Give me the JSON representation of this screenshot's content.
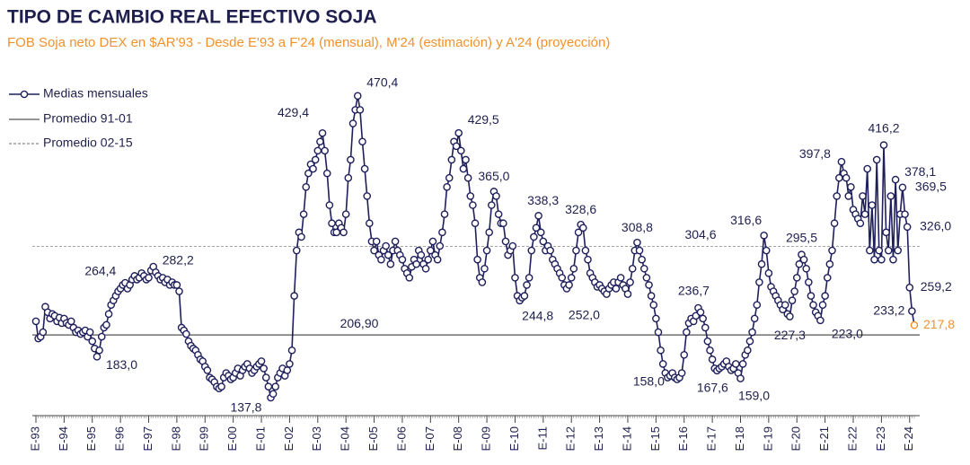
{
  "chart_data": {
    "type": "line",
    "title": "TIPO DE CAMBIO REAL EFECTIVO SOJA",
    "subtitle": "FOB Soja neto DEX en $AR'93 - Desde E'93 a F'24 (mensual), M'24 (estimación) y A'24 (proyección)",
    "ylim": [
      120,
      490
    ],
    "categories": [
      "E-93",
      null,
      null,
      null,
      null,
      null,
      null,
      null,
      null,
      null,
      null,
      null,
      "E-94",
      null,
      null,
      null,
      null,
      null,
      null,
      null,
      null,
      null,
      null,
      null,
      "E-95",
      null,
      null,
      null,
      null,
      null,
      null,
      null,
      null,
      null,
      null,
      null,
      "E-96",
      null,
      null,
      null,
      null,
      null,
      null,
      null,
      null,
      null,
      null,
      null,
      "E-97",
      null,
      null,
      null,
      null,
      null,
      null,
      null,
      null,
      null,
      null,
      null,
      "E-98",
      null,
      null,
      null,
      null,
      null,
      null,
      null,
      null,
      null,
      null,
      null,
      "E-99",
      null,
      null,
      null,
      null,
      null,
      null,
      null,
      null,
      null,
      null,
      null,
      "E-00",
      null,
      null,
      null,
      null,
      null,
      null,
      null,
      null,
      null,
      null,
      null,
      "E-01",
      null,
      null,
      null,
      null,
      null,
      null,
      null,
      null,
      null,
      null,
      null,
      "E-02",
      null,
      null,
      null,
      null,
      null,
      null,
      null,
      null,
      null,
      null,
      null,
      "E-03",
      null,
      null,
      null,
      null,
      null,
      null,
      null,
      null,
      null,
      null,
      null,
      "E-04",
      null,
      null,
      null,
      null,
      null,
      null,
      null,
      null,
      null,
      null,
      null,
      "E-05",
      null,
      null,
      null,
      null,
      null,
      null,
      null,
      null,
      null,
      null,
      null,
      "E-06",
      null,
      null,
      null,
      null,
      null,
      null,
      null,
      null,
      null,
      null,
      null,
      "E-07",
      null,
      null,
      null,
      null,
      null,
      null,
      null,
      null,
      null,
      null,
      null,
      "E-08",
      null,
      null,
      null,
      null,
      null,
      null,
      null,
      null,
      null,
      null,
      null,
      "E-09",
      null,
      null,
      null,
      null,
      null,
      null,
      null,
      null,
      null,
      null,
      null,
      "E-10",
      null,
      null,
      null,
      null,
      null,
      null,
      null,
      null,
      null,
      null,
      null,
      "E-11",
      null,
      null,
      null,
      null,
      null,
      null,
      null,
      null,
      null,
      null,
      null,
      "E-12",
      null,
      null,
      null,
      null,
      null,
      null,
      null,
      null,
      null,
      null,
      null,
      "E-13",
      null,
      null,
      null,
      null,
      null,
      null,
      null,
      null,
      null,
      null,
      null,
      "E-14",
      null,
      null,
      null,
      null,
      null,
      null,
      null,
      null,
      null,
      null,
      null,
      "E-15",
      null,
      null,
      null,
      null,
      null,
      null,
      null,
      null,
      null,
      null,
      null,
      "E-16",
      null,
      null,
      null,
      null,
      null,
      null,
      null,
      null,
      null,
      null,
      null,
      "E-17",
      null,
      null,
      null,
      null,
      null,
      null,
      null,
      null,
      null,
      null,
      null,
      "E-18",
      null,
      null,
      null,
      null,
      null,
      null,
      null,
      null,
      null,
      null,
      null,
      "E-19",
      null,
      null,
      null,
      null,
      null,
      null,
      null,
      null,
      null,
      null,
      null,
      "E-20",
      null,
      null,
      null,
      null,
      null,
      null,
      null,
      null,
      null,
      null,
      null,
      "E-21",
      null,
      null,
      null,
      null,
      null,
      null,
      null,
      null,
      null,
      null,
      null,
      "E-22",
      null,
      null,
      null,
      null,
      null,
      null,
      null,
      null,
      null,
      null,
      null,
      "E-23",
      null,
      null,
      null,
      null,
      null,
      null,
      null,
      null,
      null,
      null,
      null,
      "E-24",
      null,
      null
    ],
    "series": [
      {
        "name": "Medias mensuales",
        "color": "#1f1f5c",
        "values": [
          222,
          203,
          205,
          210,
          238,
          232,
          225,
          230,
          228,
          222,
          226,
          220,
          225,
          220,
          218,
          222,
          215,
          210,
          212,
          208,
          210,
          212,
          205,
          210,
          200,
          192,
          183.0,
          190,
          205,
          215,
          218,
          230,
          240,
          245,
          250,
          255,
          258,
          262,
          264.4,
          258,
          262,
          268,
          272,
          268,
          270,
          275,
          272,
          268,
          270,
          278,
          282.2,
          276,
          272,
          268,
          270,
          265,
          268,
          262,
          265,
          262,
          262,
          255,
          215,
          212,
          208,
          200,
          195,
          192,
          190,
          185,
          180,
          178,
          172,
          168,
          160,
          158,
          155,
          150,
          148,
          150,
          160,
          165,
          162,
          158,
          160,
          165,
          170,
          162,
          168,
          172,
          175,
          170,
          165,
          168,
          172,
          175,
          178,
          170,
          160,
          150,
          137.8,
          142,
          150,
          160,
          165,
          170,
          162,
          168,
          175,
          190,
          250,
          300,
          320,
          315,
          340,
          370,
          385,
          395,
          390,
          400,
          410,
          420,
          429.4,
          410,
          385,
          350,
          330,
          320,
          320,
          330,
          325,
          320,
          340,
          380,
          400,
          440,
          455,
          470.4,
          455,
          420,
          390,
          360,
          330,
          310,
          300,
          310,
          295,
          290,
          300,
          305,
          295,
          285,
          300,
          310,
          300,
          295,
          290,
          280,
          275,
          270,
          282,
          290,
          285,
          300,
          295,
          285,
          280,
          290,
          300,
          310,
          295,
          290,
          305,
          320,
          340,
          370,
          380,
          400,
          420,
          415,
          429.5,
          410,
          390,
          400,
          380,
          360,
          350,
          330,
          290,
          270,
          265,
          280,
          300,
          320,
          350,
          365.0,
          360,
          340,
          330,
          330,
          310,
          295,
          300,
          305,
          270,
          250,
          244.8,
          248,
          250,
          262,
          270,
          300,
          315,
          325,
          338.3,
          320,
          310,
          300,
          305,
          300,
          290,
          285,
          280,
          275,
          270,
          262,
          258,
          262,
          270,
          280,
          300,
          320,
          328.6,
          325,
          300,
          290,
          275,
          270,
          265,
          260,
          262,
          258,
          255,
          252.0,
          258,
          262,
          265,
          258,
          265,
          270,
          262,
          258,
          252,
          265,
          280,
          300,
          308.8,
          300,
          290,
          280,
          270,
          262,
          250,
          240,
          225,
          210,
          190,
          175,
          165,
          160,
          162,
          165,
          160,
          158.0,
          160,
          165,
          185,
          210,
          220,
          225,
          222,
          228,
          236.7,
          232,
          225,
          215,
          200,
          190,
          180,
          170,
          167.6,
          170,
          172,
          175,
          178,
          172,
          168,
          170,
          175,
          165,
          159.0,
          175,
          185,
          190,
          200,
          210,
          225,
          240,
          265,
          285,
          316.6,
          300,
          275,
          260,
          255,
          250,
          245,
          240,
          235,
          240,
          230,
          227.3,
          245,
          255,
          270,
          285,
          295.5,
          290,
          280,
          265,
          250,
          240,
          232,
          228,
          223.0,
          240,
          250,
          270,
          285,
          300,
          330,
          360,
          380,
          397.8,
          385,
          380,
          360,
          370,
          345,
          340,
          335,
          330,
          360,
          340,
          390,
          300,
          350,
          290,
          400,
          300,
          290,
          416.2,
          320,
          300,
          360,
          290,
          378.1,
          300,
          340,
          369.5,
          340,
          326.0,
          259.2,
          233.2,
          217.8
        ]
      }
    ],
    "reference_lines": [
      {
        "name": "Promedio 91-01",
        "value": 206.9,
        "label": "206,90",
        "style": "solid",
        "color": "#555555"
      },
      {
        "name": "Promedio 02-15",
        "value": 304.6,
        "label": "304,6",
        "style": "dashed",
        "color": "#888888"
      }
    ],
    "annotations": [
      {
        "index": 38,
        "label": "264,4"
      },
      {
        "index": 50,
        "label": "282,2"
      },
      {
        "index": 26,
        "label": "183,0"
      },
      {
        "index": 100,
        "label": "137,8"
      },
      {
        "index": 122,
        "label": "429,4"
      },
      {
        "index": 137,
        "label": "470,4"
      },
      {
        "index": 180,
        "label": "429,5"
      },
      {
        "index": 195,
        "label": "365,0"
      },
      {
        "index": 214,
        "label": "338,3"
      },
      {
        "index": 232,
        "label": "328,6"
      },
      {
        "index": 206,
        "label": "244,8"
      },
      {
        "index": 243,
        "label": "252,0"
      },
      {
        "index": 256,
        "label": "308,8"
      },
      {
        "index": 282,
        "label": "236,7"
      },
      {
        "index": 273,
        "label": "158,0"
      },
      {
        "index": 290,
        "label": "167,6"
      },
      {
        "index": 300,
        "label": "159,0"
      },
      {
        "index": 310,
        "label": "316,6"
      },
      {
        "index": 321,
        "label": "227,3"
      },
      {
        "index": 326,
        "label": "295,5"
      },
      {
        "index": 334,
        "label": "223,0"
      },
      {
        "index": 343,
        "label": "397,8"
      },
      {
        "index": 361,
        "label": "416,2"
      },
      {
        "index": 366,
        "label": "378,1"
      },
      {
        "index": 369,
        "label": "369,5"
      },
      {
        "index": 371,
        "label": "326,0"
      },
      {
        "index": 372,
        "label": "259,2"
      },
      {
        "index": 373,
        "label": "233,2"
      },
      {
        "index": 374,
        "label": "217,8",
        "color": "#f0922c"
      }
    ]
  }
}
